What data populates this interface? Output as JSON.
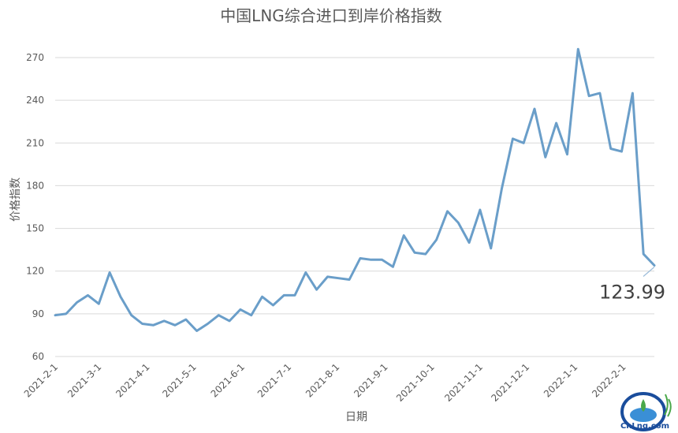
{
  "chart_data": {
    "type": "line",
    "title": "中国LNG综合进口到岸价格指数",
    "xlabel": "日期",
    "ylabel": "价格指数",
    "ylim": [
      60,
      280
    ],
    "yticks": [
      "60",
      "90",
      "120",
      "150",
      "180",
      "210",
      "240",
      "270"
    ],
    "xtick_labels": [
      "2021-2-1",
      "2021-3-1",
      "2021-4-1",
      "2021-5-1",
      "2021-6-1",
      "2021-7-1",
      "2021-8-1",
      "2021-9-1",
      "2021-10-1",
      "2021-11-1",
      "2021-12-1",
      "2022-1-1",
      "2022-2-1"
    ],
    "grid": true,
    "legend": "none",
    "series": [
      {
        "values": [
          89,
          90,
          98,
          103,
          97,
          119,
          102,
          89,
          83,
          82,
          85,
          82,
          86,
          78,
          83,
          89,
          85,
          93,
          89,
          102,
          96,
          103,
          103,
          119,
          107,
          116,
          115,
          114,
          129,
          128,
          128,
          123,
          145,
          133,
          132,
          142,
          162,
          154,
          140,
          163,
          136,
          178,
          213,
          210,
          234,
          200,
          224,
          202,
          276,
          243,
          245,
          206,
          204,
          245,
          132,
          124
        ]
      }
    ],
    "annotation": "123.99"
  },
  "colors": {
    "series": "#6a9ec9",
    "grid": "#d9d9d9",
    "text": "#595959"
  },
  "logo": {
    "text": "CnLng.com"
  }
}
